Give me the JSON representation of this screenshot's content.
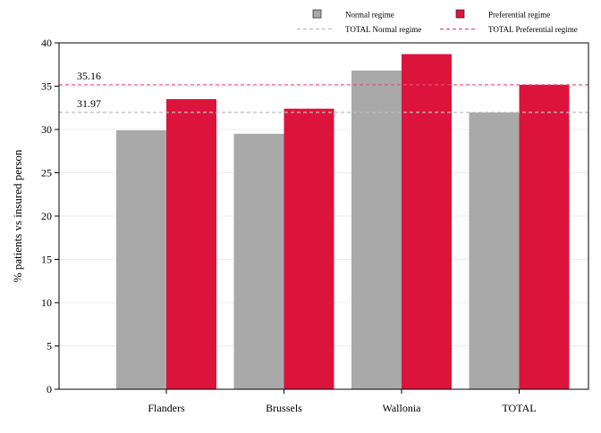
{
  "chart_data": {
    "type": "bar",
    "categories": [
      "Flanders",
      "Brussels",
      "Wallonia",
      "TOTAL"
    ],
    "series": [
      {
        "name": "Normal regime",
        "values": [
          29.9,
          29.5,
          36.8,
          31.97
        ],
        "color": "#a9a9a9"
      },
      {
        "name": "Preferential regime",
        "values": [
          33.5,
          32.4,
          38.7,
          35.16
        ],
        "color": "#dc143c"
      }
    ],
    "reference_lines": [
      {
        "name": "TOTAL Normal regime",
        "value": 31.97,
        "label": "31.97",
        "color": "#bdbdbd",
        "style": "dashed"
      },
      {
        "name": "TOTAL Preferential regime",
        "value": 35.16,
        "label": "35.16",
        "color": "#e0507a",
        "style": "dashed"
      }
    ],
    "ylabel": "% patients vs insured person",
    "xlabel": "",
    "ylim": [
      0,
      40
    ],
    "yticks": [
      0,
      5,
      10,
      15,
      20,
      25,
      30,
      35,
      40
    ],
    "grid": true,
    "legend_position": "top-right"
  }
}
